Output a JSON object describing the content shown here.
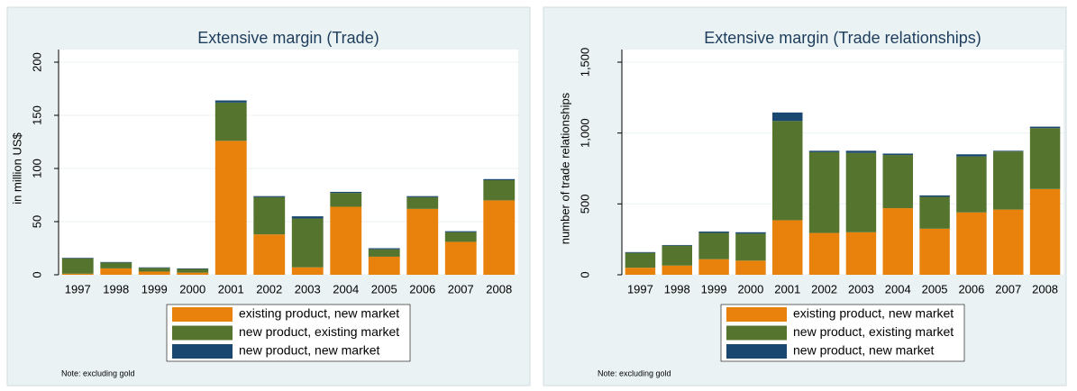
{
  "chart_data": [
    {
      "type": "bar",
      "stacked": true,
      "title": "Extensive margin (Trade)",
      "ylabel": "in million US$",
      "categories": [
        "1997",
        "1998",
        "1999",
        "2000",
        "2001",
        "2002",
        "2003",
        "2004",
        "2005",
        "2006",
        "2007",
        "2008"
      ],
      "series": [
        {
          "name": "existing product, new market",
          "color": "#e8820c",
          "values": [
            1,
            6,
            3,
            2,
            126,
            38,
            7,
            64,
            17,
            62,
            31,
            70
          ]
        },
        {
          "name": "new product, existing market",
          "color": "#55752f",
          "values": [
            14.5,
            5.5,
            3.5,
            3.5,
            36,
            35,
            46,
            13,
            7,
            11,
            9,
            19
          ]
        },
        {
          "name": "new product, new market",
          "color": "#1a476f",
          "values": [
            0.5,
            0.5,
            0.5,
            0.5,
            2,
            1,
            2,
            1,
            1,
            1,
            1,
            1
          ]
        }
      ],
      "ylim": [
        0,
        200
      ],
      "yticks": [
        0,
        50,
        100,
        150,
        200
      ],
      "grid": true,
      "legend": "bottom",
      "note": "Note: excluding gold"
    },
    {
      "type": "bar",
      "stacked": true,
      "title": "Extensive margin (Trade relationships)",
      "ylabel": "number of trade relationships",
      "categories": [
        "1997",
        "1998",
        "1999",
        "2000",
        "2001",
        "2002",
        "2003",
        "2004",
        "2005",
        "2006",
        "2007",
        "2008"
      ],
      "series": [
        {
          "name": "existing product, new market",
          "color": "#e8820c",
          "values": [
            50,
            65,
            110,
            100,
            385,
            295,
            300,
            470,
            325,
            440,
            460,
            605
          ]
        },
        {
          "name": "new product, existing market",
          "color": "#55752f",
          "values": [
            105,
            140,
            185,
            190,
            700,
            570,
            560,
            375,
            225,
            395,
            410,
            430
          ]
        },
        {
          "name": "new product, new market",
          "color": "#1a476f",
          "values": [
            5,
            5,
            10,
            10,
            60,
            10,
            15,
            10,
            10,
            15,
            5,
            10
          ]
        }
      ],
      "ylim": [
        0,
        1500
      ],
      "yticks": [
        0,
        500,
        {
          "value": 1000,
          "label": "1,000"
        },
        {
          "value": 1500,
          "label": "1,500"
        }
      ],
      "grid": true,
      "legend": "bottom",
      "note": "Note: excluding gold"
    }
  ]
}
